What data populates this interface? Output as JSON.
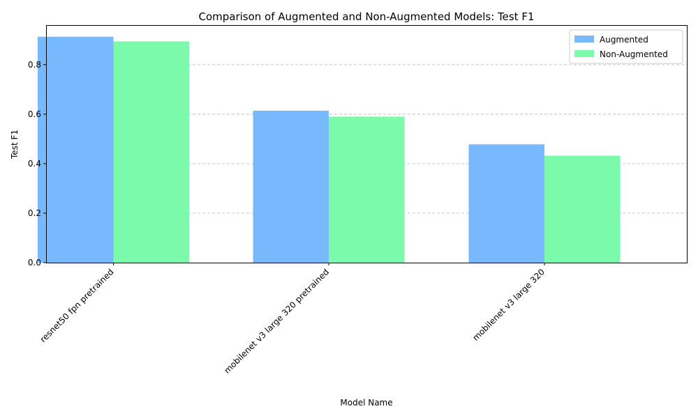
{
  "chart_data": {
    "type": "bar",
    "title": "Comparison of Augmented and Non-Augmented Models: Test F1",
    "xlabel": "Model Name",
    "ylabel": "Test F1",
    "categories": [
      "resnet50 fpn pretrained",
      "mobilenet v3 large 320 pretrained",
      "mobilenet v3 large 320"
    ],
    "series": [
      {
        "name": "Augmented",
        "color": "#78b8fc",
        "values": [
          0.913,
          0.614,
          0.478
        ]
      },
      {
        "name": "Non-Augmented",
        "color": "#7afaaa",
        "values": [
          0.894,
          0.59,
          0.432
        ]
      }
    ],
    "ylim": [
      0,
      0.96
    ],
    "yticks": [
      0.0,
      0.2,
      0.4,
      0.6,
      0.8
    ],
    "ytick_labels": [
      "0.0",
      "0.2",
      "0.4",
      "0.6",
      "0.8"
    ],
    "grid": "y-dashed",
    "legend": "top-right"
  }
}
